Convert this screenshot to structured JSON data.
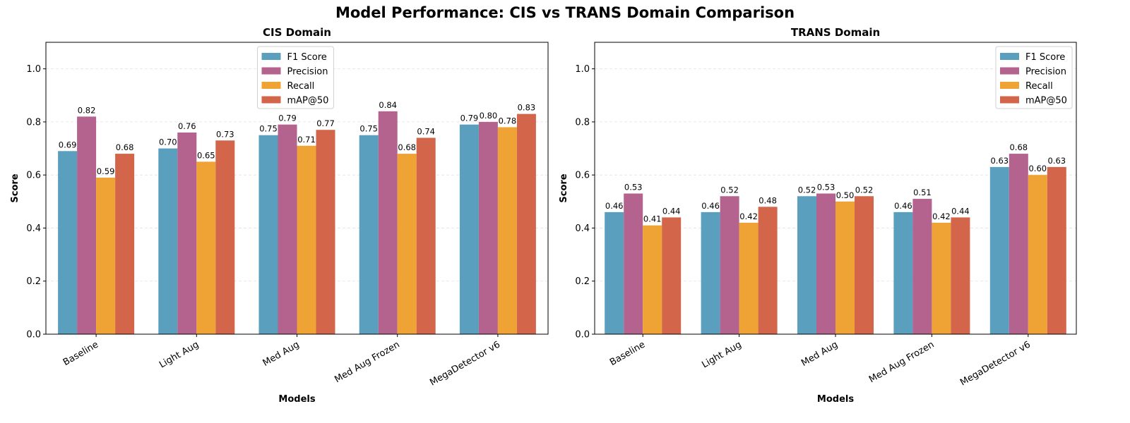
{
  "suptitle": "Model Performance: CIS vs TRANS Domain Comparison",
  "colors": {
    "F1 Score": "#5a9fbd",
    "Precision": "#b4628e",
    "Recall": "#f0a335",
    "mAP@50": "#d2654a"
  },
  "chart_data": [
    {
      "type": "bar",
      "title": "CIS Domain",
      "xlabel": "Models",
      "ylabel": "Score",
      "ylim": [
        0,
        1.1
      ],
      "yticks": [
        "0.0",
        "0.2",
        "0.4",
        "0.6",
        "0.8",
        "1.0"
      ],
      "grid": "y dashed",
      "legend_position": "top-center",
      "categories": [
        "Baseline",
        "Light Aug",
        "Med Aug",
        "Med Aug Frozen",
        "MegaDetector v6"
      ],
      "series": [
        {
          "name": "F1 Score",
          "values": [
            0.69,
            0.7,
            0.75,
            0.75,
            0.79
          ],
          "labels": [
            "0.69",
            "0.70",
            "0.75",
            "0.75",
            "0.79"
          ]
        },
        {
          "name": "Precision",
          "values": [
            0.82,
            0.76,
            0.79,
            0.84,
            0.8
          ],
          "labels": [
            "0.82",
            "0.76",
            "0.79",
            "0.84",
            "0.80"
          ]
        },
        {
          "name": "Recall",
          "values": [
            0.59,
            0.65,
            0.71,
            0.68,
            0.78
          ],
          "labels": [
            "0.59",
            "0.65",
            "0.71",
            "0.68",
            "0.78"
          ]
        },
        {
          "name": "mAP@50",
          "values": [
            0.68,
            0.73,
            0.77,
            0.74,
            0.83
          ],
          "labels": [
            "0.68",
            "0.73",
            "0.77",
            "0.74",
            "0.83"
          ]
        }
      ]
    },
    {
      "type": "bar",
      "title": "TRANS Domain",
      "xlabel": "Models",
      "ylabel": "Score",
      "ylim": [
        0,
        1.1
      ],
      "yticks": [
        "0.0",
        "0.2",
        "0.4",
        "0.6",
        "0.8",
        "1.0"
      ],
      "grid": "y dashed",
      "legend_position": "top-right",
      "categories": [
        "Baseline",
        "Light Aug",
        "Med Aug",
        "Med Aug Frozen",
        "MegaDetector v6"
      ],
      "series": [
        {
          "name": "F1 Score",
          "values": [
            0.46,
            0.46,
            0.52,
            0.46,
            0.63
          ],
          "labels": [
            "0.46",
            "0.46",
            "0.52",
            "0.46",
            "0.63"
          ]
        },
        {
          "name": "Precision",
          "values": [
            0.53,
            0.52,
            0.53,
            0.51,
            0.68
          ],
          "labels": [
            "0.53",
            "0.52",
            "0.53",
            "0.51",
            "0.68"
          ]
        },
        {
          "name": "Recall",
          "values": [
            0.41,
            0.42,
            0.5,
            0.42,
            0.6
          ],
          "labels": [
            "0.41",
            "0.42",
            "0.50",
            "0.42",
            "0.60"
          ]
        },
        {
          "name": "mAP@50",
          "values": [
            0.44,
            0.48,
            0.52,
            0.44,
            0.63
          ],
          "labels": [
            "0.44",
            "0.48",
            "0.52",
            "0.44",
            "0.63"
          ]
        }
      ]
    }
  ]
}
